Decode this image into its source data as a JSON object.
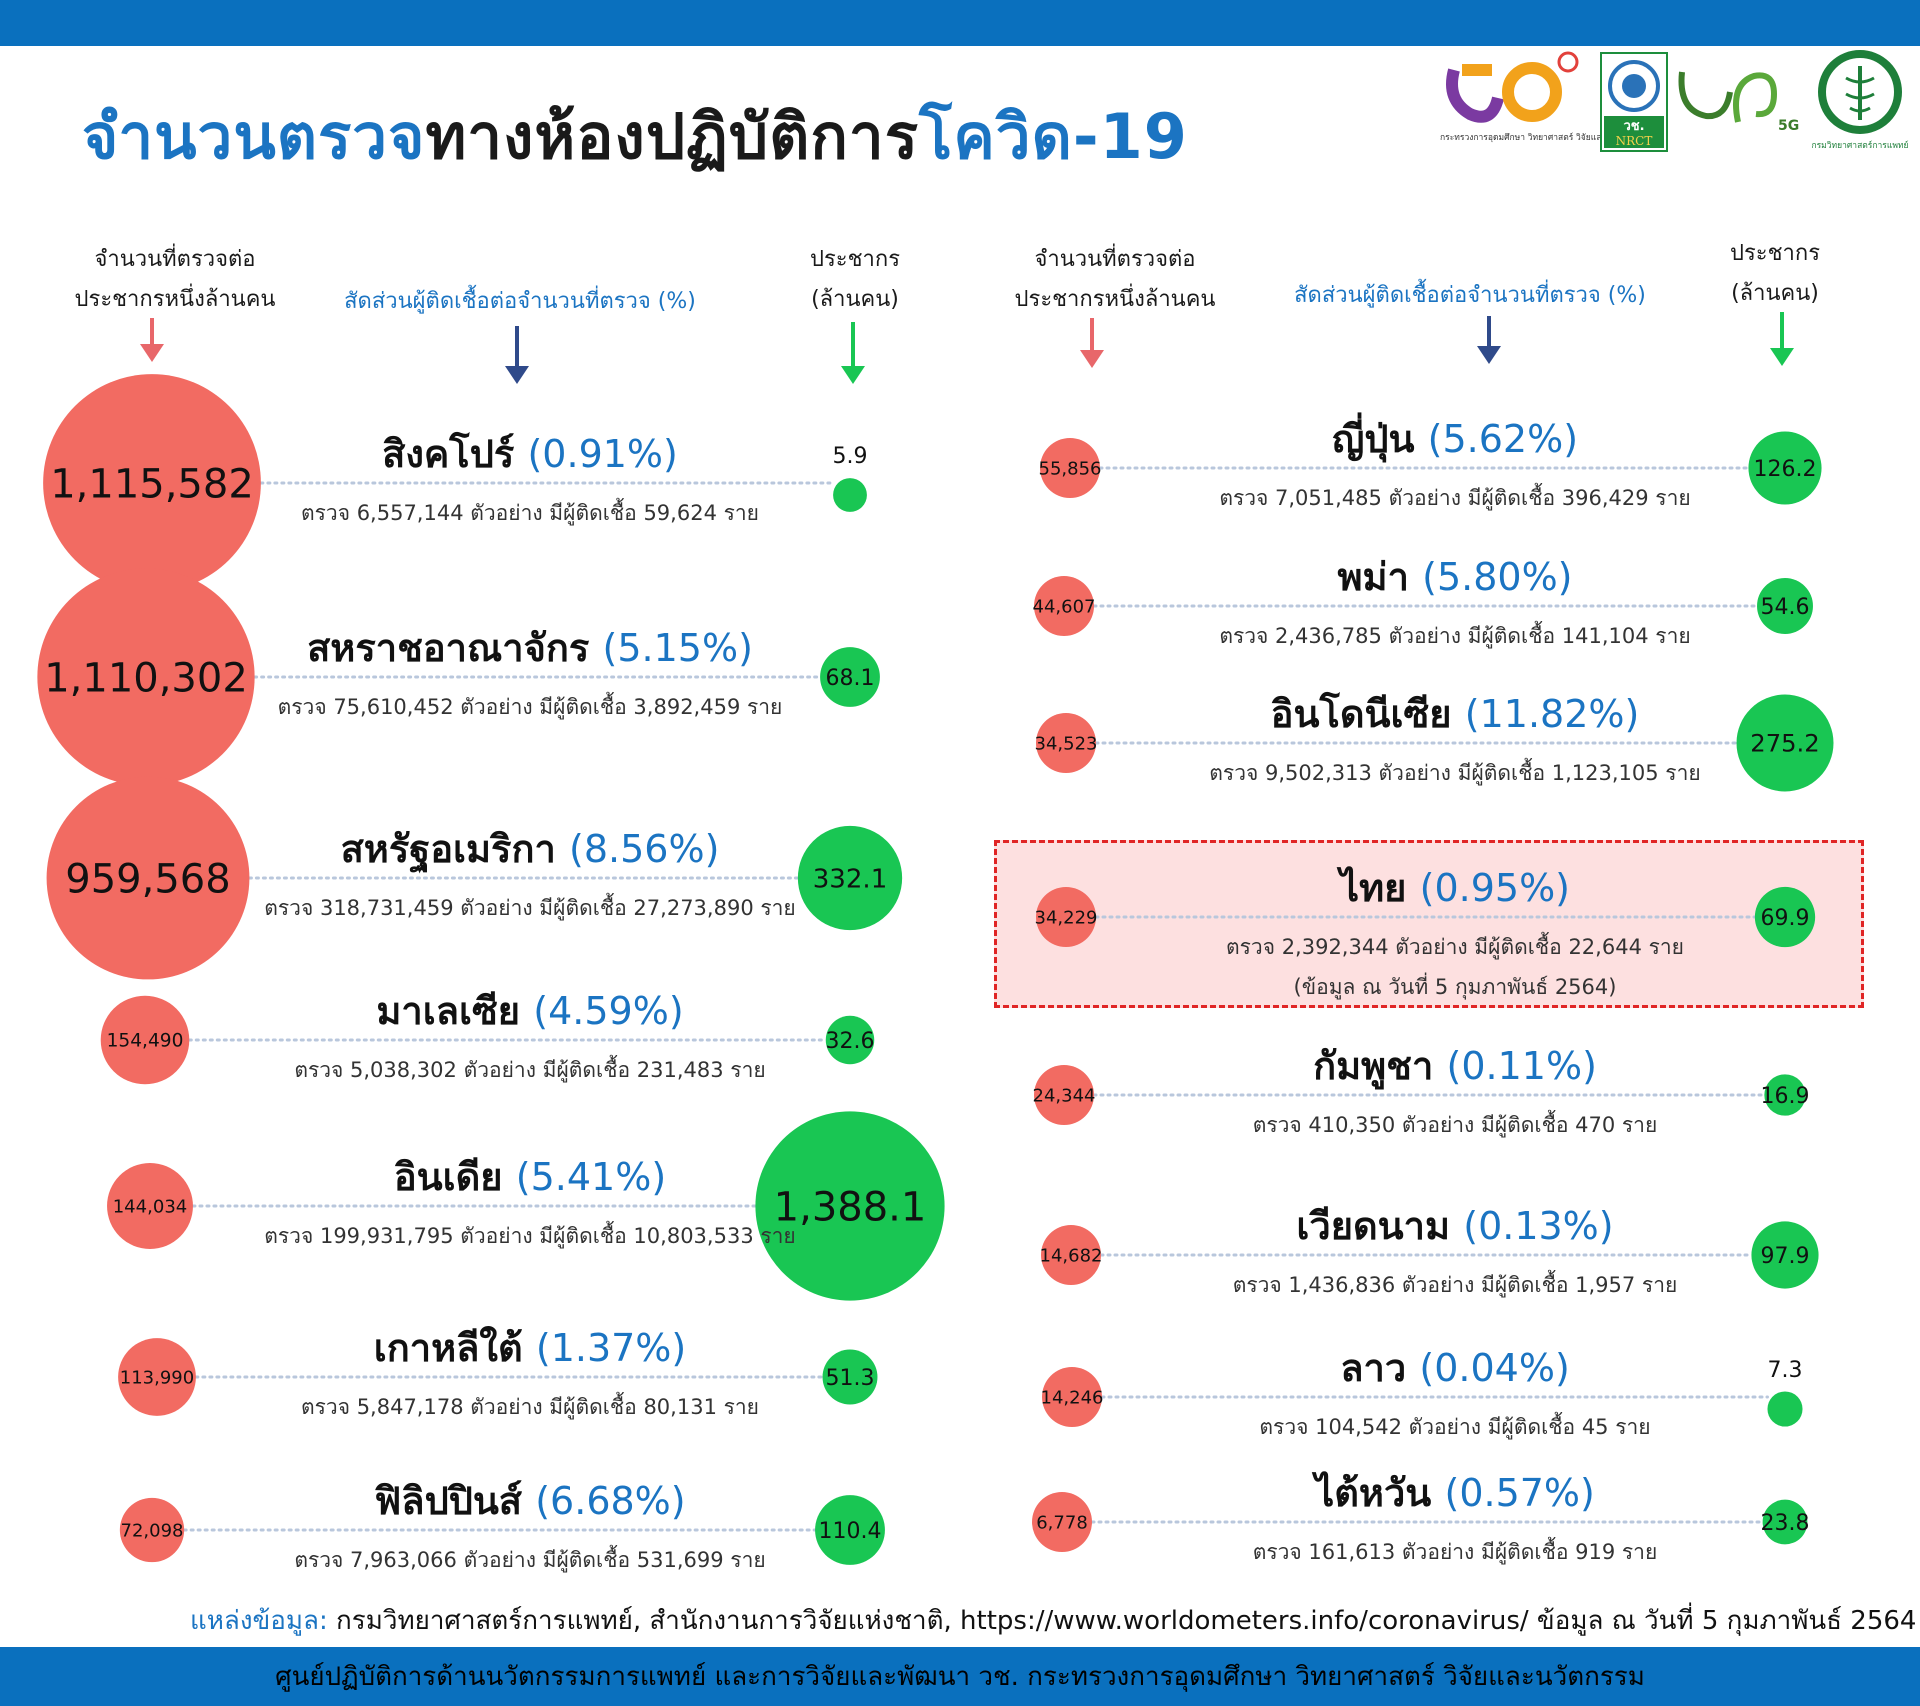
{
  "title": {
    "part_blue_1": "จำนวนตรวจ",
    "part_dark": "ทางห้องปฏิบัติการ",
    "part_blue_2": "โควิด-19"
  },
  "logos": {
    "mhesi": {
      "icon": "mhesi-logo",
      "text": "กระทรวงการอุดมศึกษา วิทยาศาสตร์ วิจัยและนวัตกรรม"
    },
    "nrct": {
      "icon": "nrct-logo",
      "text_top": "วช.",
      "text_bottom": "NRCT"
    },
    "wch5g": {
      "icon": "wch-5g-logo",
      "text": "5G"
    },
    "dmsc": {
      "icon": "dmsc-logo",
      "text": "กรมวิทยาศาสตร์การแพทย์"
    }
  },
  "headers": {
    "left": {
      "tests_per_million": [
        "จำนวนที่ตรวจต่อ",
        "ประชากรหนึ่งล้านคน"
      ],
      "positivity": "สัดส่วนผู้ติดเชื้อต่อจำนวนที่ตรวจ (%)",
      "population": [
        "ประชากร",
        "(ล้านคน)"
      ]
    },
    "right": {
      "tests_per_million": [
        "จำนวนที่ตรวจต่อ",
        "ประชากรหนึ่งล้านคน"
      ],
      "positivity": "สัดส่วนผู้ติดเชื้อต่อจำนวนที่ตรวจ (%)",
      "population": [
        "ประชากร",
        "(ล้านคน)"
      ]
    }
  },
  "colors": {
    "tests_circle": "#f26b62",
    "population_circle": "#19c653",
    "header_blue": "#1b74c2",
    "arrow_red": "#e8676a",
    "arrow_navy": "#2f4a8a",
    "arrow_green": "#19c653",
    "thai_box_fill": "#fde0e0",
    "thai_box_border": "#e02525"
  },
  "chart_data": {
    "type": "bubble",
    "columns": [
      "tests_per_million",
      "positivity_pct",
      "population_millions"
    ],
    "countries": [
      {
        "side": "left",
        "name": "สิงคโปร์",
        "positivity_label": "(0.91%)",
        "positivity_pct": 0.91,
        "tests_per_million": 1115582,
        "tests_per_million_label": "1,115,582",
        "population_millions": 5.9,
        "population_label": "5.9",
        "tests": "6,557,144",
        "infected": "59,624",
        "detail": "ตรวจ 6,557,144  ตัวอย่าง มีผู้ติดเชื้อ 59,624 ราย"
      },
      {
        "side": "left",
        "name": "สหราชอาณาจักร",
        "positivity_label": "(5.15%)",
        "positivity_pct": 5.15,
        "tests_per_million": 1110302,
        "tests_per_million_label": "1,110,302",
        "population_millions": 68.1,
        "population_label": "68.1",
        "tests": "75,610,452",
        "infected": "3,892,459",
        "detail": "ตรวจ 75,610,452 ตัวอย่าง มีผู้ติดเชื้อ 3,892,459 ราย"
      },
      {
        "side": "left",
        "name": "สหรัฐอเมริกา",
        "positivity_label": "(8.56%)",
        "positivity_pct": 8.56,
        "tests_per_million": 959568,
        "tests_per_million_label": "959,568",
        "population_millions": 332.1,
        "population_label": "332.1",
        "tests": "318,731,459",
        "infected": "27,273,890",
        "detail": "ตรวจ 318,731,459 ตัวอย่าง มีผู้ติดเชื้อ 27,273,890 ราย"
      },
      {
        "side": "left",
        "name": "มาเลเซีย",
        "positivity_label": "(4.59%)",
        "positivity_pct": 4.59,
        "tests_per_million": 154490,
        "tests_per_million_label": "154,490",
        "population_millions": 32.6,
        "population_label": "32.6",
        "tests": "5,038,302",
        "infected": "231,483",
        "detail": "ตรวจ 5,038,302  ตัวอย่าง มีผู้ติดเชื้อ 231,483 ราย"
      },
      {
        "side": "left",
        "name": "อินเดีย",
        "positivity_label": "(5.41%)",
        "positivity_pct": 5.41,
        "tests_per_million": 144034,
        "tests_per_million_label": "144,034",
        "population_millions": 1388.1,
        "population_label": "1,388.1",
        "tests": "199,931,795",
        "infected": "10,803,533",
        "detail": "ตรวจ 199,931,795  ตัวอย่าง มีผู้ติดเชื้อ 10,803,533 ราย"
      },
      {
        "side": "left",
        "name": "เกาหลีใต้",
        "positivity_label": "(1.37%)",
        "positivity_pct": 1.37,
        "tests_per_million": 113990,
        "tests_per_million_label": "113,990",
        "population_millions": 51.3,
        "population_label": "51.3",
        "tests": "5,847,178",
        "infected": "80,131",
        "detail": "ตรวจ 5,847,178  ตัวอย่าง มีผู้ติดเชื้อ 80,131 ราย"
      },
      {
        "side": "left",
        "name": "ฟิลิปปินส์",
        "positivity_label": "(6.68%)",
        "positivity_pct": 6.68,
        "tests_per_million": 72098,
        "tests_per_million_label": "72,098",
        "population_millions": 110.4,
        "population_label": "110.4",
        "tests": "7,963,066",
        "infected": "531,699",
        "detail": "ตรวจ 7,963,066  ตัวอย่าง มีผู้ติดเชื้อ 531,699 ราย"
      },
      {
        "side": "right",
        "name": "ญี่ปุ่น",
        "positivity_label": "(5.62%)",
        "positivity_pct": 5.62,
        "tests_per_million": 55856,
        "tests_per_million_label": "55,856",
        "population_millions": 126.2,
        "population_label": "126.2",
        "tests": "7,051,485",
        "infected": "396,429",
        "detail": "ตรวจ 7,051,485 ตัวอย่าง มีผู้ติดเชื้อ 396,429 ราย"
      },
      {
        "side": "right",
        "name": "พม่า",
        "positivity_label": "(5.80%)",
        "positivity_pct": 5.8,
        "tests_per_million": 44607,
        "tests_per_million_label": "44,607",
        "population_millions": 54.6,
        "population_label": "54.6",
        "tests": "2,436,785",
        "infected": "141,104",
        "detail": "ตรวจ 2,436,785 ตัวอย่าง มีผู้ติดเชื้อ 141,104 ราย"
      },
      {
        "side": "right",
        "name": "อินโดนีเซีย",
        "positivity_label": "(11.82%)",
        "positivity_pct": 11.82,
        "tests_per_million": 34523,
        "tests_per_million_label": "34,523",
        "population_millions": 275.2,
        "population_label": "275.2",
        "tests": "9,502,313",
        "infected": "1,123,105",
        "detail": "ตรวจ 9,502,313  ตัวอย่าง มีผู้ติดเชื้อ 1,123,105 ราย"
      },
      {
        "side": "right",
        "name": "ไทย",
        "positivity_label": "(0.95%)",
        "positivity_pct": 0.95,
        "tests_per_million": 34229,
        "tests_per_million_label": "34,229",
        "population_millions": 69.9,
        "population_label": "69.9",
        "tests": "2,392,344",
        "infected": "22,644",
        "detail": "ตรวจ 2,392,344 ตัวอย่าง มีผู้ติดเชื้อ 22,644 ราย",
        "note": "(ข้อมูล ณ วันที่ 5 กุมภาพันธ์ 2564)",
        "highlight": true
      },
      {
        "side": "right",
        "name": "กัมพูชา",
        "positivity_label": "(0.11%)",
        "positivity_pct": 0.11,
        "tests_per_million": 24344,
        "tests_per_million_label": "24,344",
        "population_millions": 16.9,
        "population_label": "16.9",
        "tests": "410,350",
        "infected": "470",
        "detail": "ตรวจ 410,350 ตัวอย่าง มีผู้ติดเชื้อ 470 ราย"
      },
      {
        "side": "right",
        "name": "เวียดนาม",
        "positivity_label": "(0.13%)",
        "positivity_pct": 0.13,
        "tests_per_million": 14682,
        "tests_per_million_label": "14,682",
        "population_millions": 97.9,
        "population_label": "97.9",
        "tests": "1,436,836",
        "infected": "1,957",
        "detail": "ตรวจ 1,436,836 ตัวอย่าง มีผู้ติดเชื้อ 1,957 ราย"
      },
      {
        "side": "right",
        "name": "ลาว",
        "positivity_label": "(0.04%)",
        "positivity_pct": 0.04,
        "tests_per_million": 14246,
        "tests_per_million_label": "14,246",
        "population_millions": 7.3,
        "population_label": "7.3",
        "tests": "104,542",
        "infected": "45",
        "detail": "ตรวจ 104,542 ตัวอย่าง มีผู้ติดเชื้อ 45 ราย"
      },
      {
        "side": "right",
        "name": "ไต้หวัน",
        "positivity_label": "(0.57%)",
        "positivity_pct": 0.57,
        "tests_per_million": 6778,
        "tests_per_million_label": "6,778",
        "population_millions": 23.8,
        "population_label": "23.8",
        "tests": "161,613",
        "infected": "919",
        "detail": "ตรวจ 161,613 ตัวอย่าง มีผู้ติดเชื้อ 919  ราย"
      }
    ]
  },
  "source": {
    "label": "แหล่งข้อมูล:",
    "text": "กรมวิทยาศาสตร์การแพทย์, สำนักงานการวิจัยแห่งชาติ, https://www.worldometers.info/coronavirus/ ข้อมูล ณ วันที่ 5 กุมภาพันธ์ 2564"
  },
  "footer": "ศูนย์ปฏิบัติการด้านนวัตกรรมการแพทย์ และการวิจัยและพัฒนา วช.    กระทรวงการอุดมศึกษา วิทยาศาสตร์ วิจัยและนวัตกรรม"
}
